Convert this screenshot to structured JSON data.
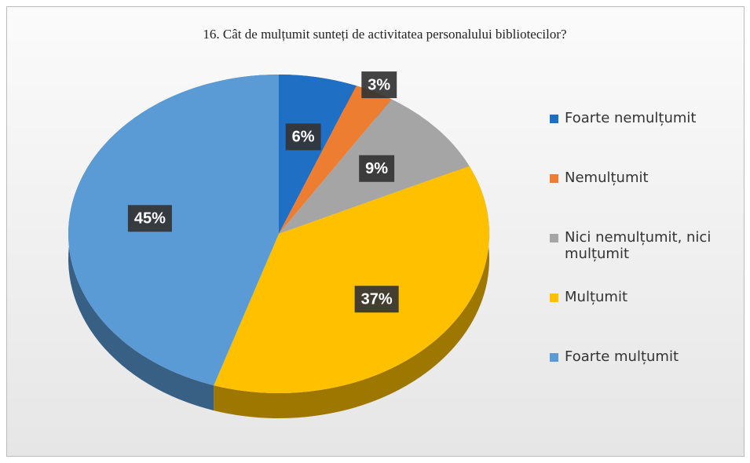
{
  "chart_data": {
    "type": "pie",
    "title": "16. Cât de mulțumit sunteți de activitatea personalului bibliotecilor?",
    "categories": [
      "Foarte nemulțumit",
      "Nemulțumit",
      "Nici nemulțumit, nici mulțumit",
      "Mulțumit",
      "Foarte mulțumit"
    ],
    "values": [
      6,
      3,
      9,
      37,
      45
    ],
    "value_labels": [
      "6%",
      "3%",
      "9%",
      "37%",
      "45%"
    ],
    "colors": [
      "#1f6fc5",
      "#ed7d31",
      "#a5a5a5",
      "#ffc000",
      "#5b9bd5"
    ],
    "legend": "right"
  }
}
